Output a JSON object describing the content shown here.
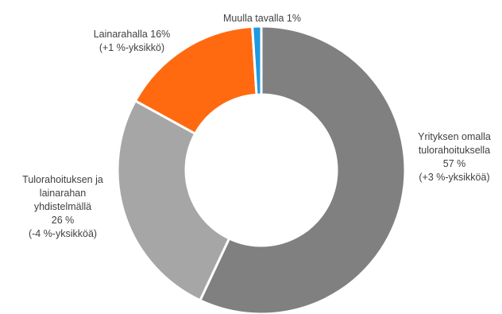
{
  "chart_data": {
    "type": "pie",
    "variant": "donut",
    "legend": "none",
    "slices": [
      {
        "name": "Yrityksen omalla tulorahoituksella",
        "value": 57,
        "change": "+3 %-yksikköä",
        "color": "#808080",
        "label_lines": [
          "Yrityksen omalla",
          "tulorahoituksella",
          "57 %",
          "(+3 %-yksikköä)"
        ]
      },
      {
        "name": "Tulorahoituksen ja lainarahan yhdistelmällä",
        "value": 26,
        "change": "-4 %-yksikköä",
        "color": "#a6a6a6",
        "label_lines": [
          "Tulorahoituksen ja",
          "lainarahan",
          "yhdistelmällä",
          "26 %",
          "(-4 %-yksikköä)"
        ]
      },
      {
        "name": "Lainarahalla",
        "value": 16,
        "change": "+1 %-yksikkö",
        "color": "#ff6a10",
        "label_lines": [
          "Lainarahalla 16%",
          "(+1 %-yksikkö)"
        ]
      },
      {
        "name": "Muulla tavalla",
        "value": 1,
        "change": "",
        "color": "#1f9ae0",
        "label_lines": [
          "Muulla tavalla 1%"
        ]
      }
    ]
  }
}
